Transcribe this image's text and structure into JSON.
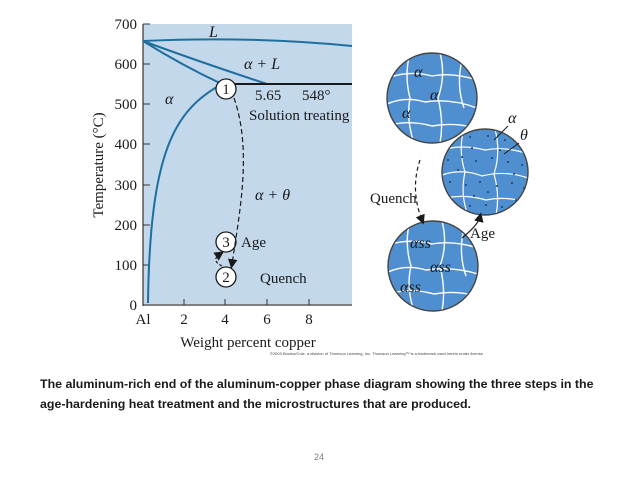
{
  "figure": {
    "y_axis_title": "Temperature (°C)",
    "x_axis_title": "Weight percent copper",
    "y_ticks": [
      "700",
      "600",
      "500",
      "400",
      "300",
      "200",
      "100",
      "0"
    ],
    "x_ticks": [
      "Al",
      "2",
      "4",
      "6",
      "8"
    ],
    "regions": {
      "liquid": "L",
      "alpha_plus_liquid": "α + L",
      "alpha": "α",
      "alpha_plus_theta": "α + θ"
    },
    "point_label": "5.65",
    "eutectic_temp": "548°",
    "step1_number": "1",
    "step1_label": "Solution treating",
    "step2_number": "2",
    "step2_label": "Quench",
    "step3_number": "3",
    "step3_label": "Age",
    "micro_top_labels": [
      "α",
      "α",
      "α"
    ],
    "micro_middle_labels": [
      "α",
      "θ"
    ],
    "micro_bottom_labels": [
      "αss",
      "αss",
      "αss"
    ],
    "micro_quench_label": "Quench",
    "micro_age_label": "Age",
    "copyright": "©2003 Brooks/Cole, a division of Thomson Learning, Inc.  Thomson Learning™ is a trademark used herein under license."
  },
  "caption": "The aluminum-rich end of the aluminum-copper phase diagram showing the three steps in the age-hardening heat treatment and the microstructures that are produced.",
  "page_number": "24",
  "colors": {
    "plot_bg": "#c4d8ec",
    "curve": "#1f6f9e",
    "grain_fill": "#4f8fcf",
    "grain_line": "#ffffff",
    "circle_border": "#444444"
  }
}
